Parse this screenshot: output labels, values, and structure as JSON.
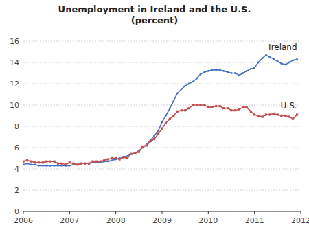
{
  "chart_data": {
    "type": "line",
    "title": "Unemployment in Ireland and the U.S.\n(percent)",
    "x": [
      2006.0,
      2006.08,
      2006.17,
      2006.25,
      2006.33,
      2006.42,
      2006.5,
      2006.58,
      2006.67,
      2006.75,
      2006.83,
      2006.92,
      2007.0,
      2007.08,
      2007.17,
      2007.25,
      2007.33,
      2007.42,
      2007.5,
      2007.58,
      2007.67,
      2007.75,
      2007.83,
      2007.92,
      2008.0,
      2008.08,
      2008.17,
      2008.25,
      2008.33,
      2008.42,
      2008.5,
      2008.58,
      2008.67,
      2008.75,
      2008.83,
      2008.92,
      2009.0,
      2009.08,
      2009.17,
      2009.25,
      2009.33,
      2009.42,
      2009.5,
      2009.58,
      2009.67,
      2009.75,
      2009.83,
      2009.92,
      2010.0,
      2010.08,
      2010.17,
      2010.25,
      2010.33,
      2010.42,
      2010.5,
      2010.58,
      2010.67,
      2010.75,
      2010.83,
      2010.92,
      2011.0,
      2011.08,
      2011.17,
      2011.25,
      2011.33,
      2011.42,
      2011.5,
      2011.58,
      2011.67,
      2011.75,
      2011.83,
      2011.92
    ],
    "series": [
      {
        "name": "Ireland",
        "color": "#4472C4",
        "marker": "circle",
        "values": [
          4.4,
          4.5,
          4.4,
          4.4,
          4.3,
          4.3,
          4.3,
          4.3,
          4.3,
          4.3,
          4.3,
          4.3,
          4.3,
          4.4,
          4.4,
          4.5,
          4.5,
          4.5,
          4.6,
          4.6,
          4.6,
          4.7,
          4.7,
          4.8,
          4.9,
          5.0,
          5.1,
          5.2,
          5.4,
          5.5,
          5.7,
          6.0,
          6.3,
          6.7,
          7.1,
          7.6,
          8.4,
          9.0,
          9.7,
          10.4,
          11.1,
          11.5,
          11.8,
          12.0,
          12.2,
          12.5,
          12.9,
          13.1,
          13.2,
          13.3,
          13.3,
          13.3,
          13.2,
          13.1,
          13.0,
          13.0,
          12.8,
          13.0,
          13.2,
          13.4,
          13.5,
          14.0,
          14.4,
          14.7,
          14.5,
          14.3,
          14.1,
          13.9,
          13.8,
          14.0,
          14.2,
          14.3
        ]
      },
      {
        "name": "U.S.",
        "color": "#C0504D",
        "marker": "square",
        "values": [
          4.7,
          4.8,
          4.7,
          4.6,
          4.6,
          4.6,
          4.7,
          4.7,
          4.7,
          4.5,
          4.5,
          4.4,
          4.6,
          4.5,
          4.4,
          4.5,
          4.5,
          4.5,
          4.7,
          4.7,
          4.7,
          4.8,
          4.9,
          5.0,
          5.0,
          4.9,
          5.1,
          5.0,
          5.4,
          5.5,
          5.6,
          6.1,
          6.2,
          6.6,
          6.8,
          7.3,
          7.8,
          8.3,
          8.7,
          9.0,
          9.4,
          9.5,
          9.5,
          9.7,
          10.0,
          10.0,
          10.0,
          10.0,
          9.8,
          9.8,
          9.9,
          9.9,
          9.7,
          9.7,
          9.5,
          9.5,
          9.6,
          9.8,
          9.8,
          9.4,
          9.1,
          9.0,
          8.9,
          9.1,
          9.1,
          9.2,
          9.1,
          9.0,
          9.0,
          8.9,
          8.7,
          9.1
        ]
      }
    ],
    "xlim": [
      2006,
      2012
    ],
    "xticks": [
      2006,
      2007,
      2008,
      2009,
      2010,
      2011,
      2012
    ],
    "ylim": [
      0,
      16
    ],
    "yticks": [
      0,
      2,
      4,
      6,
      8,
      10,
      12,
      14,
      16
    ],
    "grid": true
  }
}
